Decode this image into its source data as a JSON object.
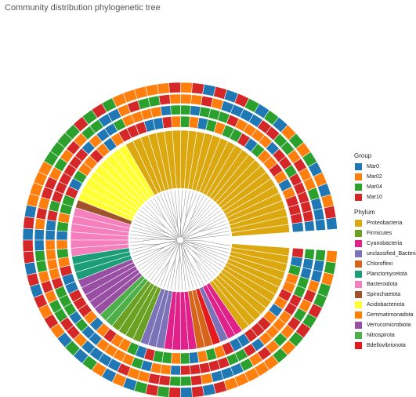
{
  "title": "Community distribution phylogenetic tree",
  "chart_data": {
    "type": "circular-phylogenetic-tree",
    "group_legend": {
      "title": "Group",
      "items": [
        {
          "label": "Mar0",
          "color": "#1f77b4"
        },
        {
          "label": "Mar02",
          "color": "#ff7f0e"
        },
        {
          "label": "Mar04",
          "color": "#2ca02c"
        },
        {
          "label": "Mar10",
          "color": "#d62728"
        }
      ]
    },
    "phylum_legend": {
      "title": "Phylum",
      "items": [
        {
          "label": "Proteobacteria",
          "color": "#dca80f"
        },
        {
          "label": "Firmicutes",
          "color": "#6aa122"
        },
        {
          "label": "Cyanobacteria",
          "color": "#e0218a"
        },
        {
          "label": "unclassified_Bacteria",
          "color": "#7b72b8"
        },
        {
          "label": "Chloroflexi",
          "color": "#d6641b"
        },
        {
          "label": "Planctomycetota",
          "color": "#1b9e77"
        },
        {
          "label": "Bacteroidota",
          "color": "#f57fbd"
        },
        {
          "label": "Spirochaetota",
          "color": "#a0522d"
        },
        {
          "label": "Acidobacteriota",
          "color": "#ffff33"
        },
        {
          "label": "Gemmatimonadota",
          "color": "#ff7f00"
        },
        {
          "label": "Verrucomicrobiota",
          "color": "#984ea3"
        },
        {
          "label": "Nitrospirota",
          "color": "#4daf4a"
        },
        {
          "label": "Bdellovibrionota",
          "color": "#e41a1c"
        }
      ]
    },
    "phylum_sectors": [
      {
        "phylum": "Proteobacteria",
        "count": 27
      },
      {
        "phylum": "Acidobacteriota",
        "count": 9
      },
      {
        "phylum": "Spirochaetota",
        "count": 1
      },
      {
        "phylum": "Bacteroidota",
        "count": 6
      },
      {
        "phylum": "Planctomycetota",
        "count": 3
      },
      {
        "phylum": "Verrucomicrobiota",
        "count": 5
      },
      {
        "phylum": "Nitrospirota",
        "count": 2
      },
      {
        "phylum": "Firmicutes",
        "count": 4
      },
      {
        "phylum": "unclassified_Bacteria",
        "count": 3
      },
      {
        "phylum": "Cyanobacteria",
        "count": 4
      },
      {
        "phylum": "Chloroflexi",
        "count": 2
      },
      {
        "phylum": "Bdellovibrionota",
        "count": 1
      },
      {
        "phylum": "unclassified_Bacteria",
        "count": 1
      },
      {
        "phylum": "Cyanobacteria",
        "count": 2
      },
      {
        "phylum": "Proteobacteria",
        "count": 12
      }
    ],
    "group_pattern": [
      "Mar0",
      "Mar02",
      "Mar04",
      "Mar10",
      "Mar02",
      "Mar0",
      "Mar10",
      "Mar04",
      "Mar02",
      "Mar10",
      "Mar0",
      "Mar04",
      "Mar02",
      "Mar10",
      "Mar02",
      "Mar0",
      "Mar04",
      "Mar10",
      "Mar02",
      "Mar04",
      "Mar0",
      "Mar10",
      "Mar02"
    ],
    "open_gap": "right"
  }
}
